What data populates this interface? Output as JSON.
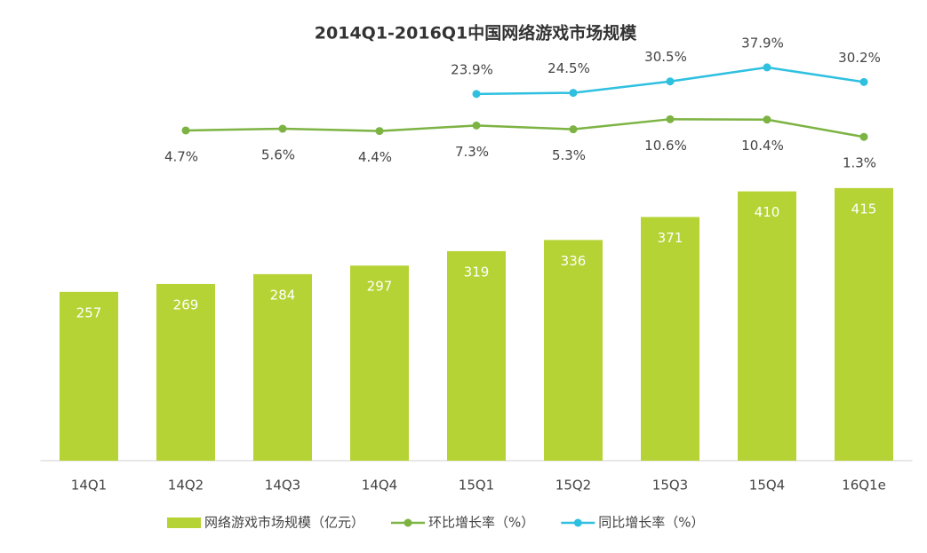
{
  "chart_data": {
    "type": "bar",
    "title": "2014Q1-2016Q1中国网络游戏市场规模",
    "categories": [
      "14Q1",
      "14Q2",
      "14Q3",
      "14Q4",
      "15Q1",
      "15Q2",
      "15Q3",
      "15Q4",
      "16Q1e"
    ],
    "ylim": [
      0,
      500
    ],
    "y2lim": [
      0,
      50
    ],
    "series": [
      {
        "name": "网络游戏市场规模（亿元）",
        "type": "bar",
        "color": "#b5d334",
        "values": [
          257,
          269,
          284,
          297,
          319,
          336,
          371,
          410,
          415
        ]
      },
      {
        "name": "环比增长率（%）",
        "type": "line",
        "axis": "y2",
        "color": "#7cb342",
        "values": [
          null,
          4.7,
          5.6,
          4.4,
          7.3,
          5.3,
          10.6,
          10.4,
          1.3
        ],
        "value_labels": [
          null,
          "4.7%",
          "5.6%",
          "4.4%",
          "7.3%",
          "5.3%",
          "10.6%",
          "10.4%",
          "1.3%"
        ]
      },
      {
        "name": "同比增长率（%）",
        "type": "line",
        "axis": "y2",
        "color": "#2fc0e0",
        "values": [
          null,
          null,
          null,
          null,
          23.9,
          24.5,
          30.5,
          37.9,
          30.2
        ],
        "value_labels": [
          null,
          null,
          null,
          null,
          "23.9%",
          "24.5%",
          "30.5%",
          "37.9%",
          "30.2%"
        ]
      }
    ]
  }
}
